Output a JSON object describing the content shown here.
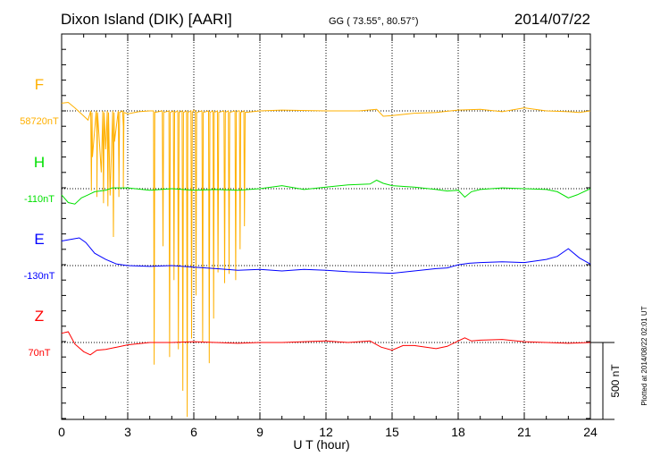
{
  "header": {
    "station": "Dixon Island (DIK)  [AARI]",
    "coords": "GG ( 73.55°,  80.57°)",
    "date": "2014/07/22"
  },
  "footer": {
    "plotted": "Plotted at 2014/08/22 02:01  UT"
  },
  "chart_data": {
    "type": "line",
    "title": "Dixon Island (DIK)  [AARI]",
    "xlabel": "U T (hour)",
    "xlim": [
      0,
      24
    ],
    "xticks": [
      "0",
      "3",
      "6",
      "9",
      "12",
      "15",
      "18",
      "21",
      "24"
    ],
    "scale_label": "500 nT",
    "scale_nT": 500,
    "series": [
      {
        "name": "F",
        "baseline": "58720nT",
        "color": "#ffb000",
        "points": [
          [
            0,
            50
          ],
          [
            0.3,
            55
          ],
          [
            0.6,
            20
          ],
          [
            0.9,
            -20
          ],
          [
            1.2,
            -60
          ],
          [
            1.4,
            -300
          ],
          [
            1.6,
            -150
          ],
          [
            1.8,
            -400
          ],
          [
            2,
            -250
          ],
          [
            2.2,
            -550
          ],
          [
            2.4,
            -200
          ],
          [
            2.6,
            -420
          ],
          [
            2.8,
            -100
          ],
          [
            3,
            -20
          ],
          [
            3.5,
            -5
          ],
          [
            4,
            0
          ],
          [
            6,
            5
          ],
          [
            8,
            0
          ],
          [
            9,
            0
          ],
          [
            10,
            5
          ],
          [
            12,
            0
          ],
          [
            13.5,
            0
          ],
          [
            14.3,
            10
          ],
          [
            14.6,
            -35
          ],
          [
            15,
            -30
          ],
          [
            16,
            -15
          ],
          [
            17,
            -10
          ],
          [
            18,
            5
          ],
          [
            19,
            10
          ],
          [
            20,
            -5
          ],
          [
            21,
            20
          ],
          [
            22,
            0
          ],
          [
            23,
            -5
          ],
          [
            23.5,
            -10
          ],
          [
            24,
            0
          ]
        ],
        "spikes": [
          [
            1.35,
            -520
          ],
          [
            1.6,
            -560
          ],
          [
            1.9,
            -600
          ],
          [
            2.1,
            -620
          ],
          [
            2.35,
            -820
          ],
          [
            2.6,
            -560
          ],
          [
            2.8,
            -500
          ],
          [
            4.2,
            -1650
          ],
          [
            4.6,
            -880
          ],
          [
            4.9,
            -1600
          ],
          [
            5.1,
            -1100
          ],
          [
            5.3,
            -1550
          ],
          [
            5.5,
            -1820
          ],
          [
            5.7,
            -1990
          ],
          [
            5.9,
            -1480
          ],
          [
            6.1,
            -1200
          ],
          [
            6.4,
            -1500
          ],
          [
            6.7,
            -1640
          ],
          [
            6.9,
            -1350
          ],
          [
            7.1,
            -1050
          ],
          [
            7.4,
            -1120
          ],
          [
            7.6,
            -1060
          ],
          [
            7.9,
            -1100
          ],
          [
            8.1,
            -900
          ],
          [
            8.3,
            -750
          ]
        ]
      },
      {
        "name": "H",
        "baseline": "-110nT",
        "color": "#00e000",
        "points": [
          [
            0,
            -40
          ],
          [
            0.3,
            -90
          ],
          [
            0.6,
            -100
          ],
          [
            0.9,
            -60
          ],
          [
            1.2,
            -40
          ],
          [
            1.5,
            -20
          ],
          [
            2,
            -10
          ],
          [
            2.3,
            5
          ],
          [
            3,
            5
          ],
          [
            4,
            -10
          ],
          [
            5,
            0
          ],
          [
            6,
            -10
          ],
          [
            7,
            -5
          ],
          [
            8,
            -10
          ],
          [
            9,
            0
          ],
          [
            10,
            20
          ],
          [
            11,
            -5
          ],
          [
            12,
            10
          ],
          [
            13,
            25
          ],
          [
            14,
            30
          ],
          [
            14.3,
            55
          ],
          [
            14.6,
            35
          ],
          [
            15,
            20
          ],
          [
            16,
            10
          ],
          [
            17,
            -5
          ],
          [
            17.5,
            -15
          ],
          [
            18,
            -10
          ],
          [
            18.3,
            -55
          ],
          [
            18.6,
            -20
          ],
          [
            19,
            -5
          ],
          [
            20,
            5
          ],
          [
            21,
            0
          ],
          [
            22,
            -5
          ],
          [
            22.5,
            -20
          ],
          [
            23,
            -60
          ],
          [
            23.4,
            -40
          ],
          [
            24,
            0
          ]
        ]
      },
      {
        "name": "E",
        "baseline": "-130nT",
        "color": "#0000ff",
        "points": [
          [
            0,
            160
          ],
          [
            0.4,
            170
          ],
          [
            0.8,
            180
          ],
          [
            1.1,
            150
          ],
          [
            1.5,
            80
          ],
          [
            2,
            40
          ],
          [
            2.5,
            10
          ],
          [
            3,
            0
          ],
          [
            4,
            -5
          ],
          [
            5,
            0
          ],
          [
            6,
            -10
          ],
          [
            7,
            -20
          ],
          [
            8,
            -30
          ],
          [
            9,
            -25
          ],
          [
            10,
            -35
          ],
          [
            11,
            -25
          ],
          [
            12,
            -30
          ],
          [
            13,
            -40
          ],
          [
            14,
            -45
          ],
          [
            15,
            -50
          ],
          [
            16,
            -35
          ],
          [
            17,
            -20
          ],
          [
            17.5,
            -15
          ],
          [
            18,
            5
          ],
          [
            18.5,
            15
          ],
          [
            19,
            20
          ],
          [
            20,
            25
          ],
          [
            21,
            20
          ],
          [
            22,
            40
          ],
          [
            22.5,
            60
          ],
          [
            23,
            110
          ],
          [
            23.5,
            50
          ],
          [
            24,
            10
          ]
        ]
      },
      {
        "name": "Z",
        "baseline": "70nT",
        "color": "#ff0000",
        "points": [
          [
            0,
            60
          ],
          [
            0.3,
            70
          ],
          [
            0.6,
            -10
          ],
          [
            1,
            -60
          ],
          [
            1.3,
            -80
          ],
          [
            1.6,
            -50
          ],
          [
            2,
            -45
          ],
          [
            2.5,
            -30
          ],
          [
            3,
            -15
          ],
          [
            4,
            0
          ],
          [
            5,
            0
          ],
          [
            6,
            5
          ],
          [
            7,
            0
          ],
          [
            8,
            -5
          ],
          [
            9,
            0
          ],
          [
            10,
            0
          ],
          [
            11,
            5
          ],
          [
            12,
            10
          ],
          [
            13,
            0
          ],
          [
            14,
            10
          ],
          [
            14.5,
            -30
          ],
          [
            15,
            -50
          ],
          [
            15.5,
            -20
          ],
          [
            16,
            -20
          ],
          [
            17,
            -40
          ],
          [
            17.5,
            -25
          ],
          [
            18,
            10
          ],
          [
            18.3,
            30
          ],
          [
            18.6,
            10
          ],
          [
            19,
            15
          ],
          [
            20,
            20
          ],
          [
            21,
            5
          ],
          [
            22,
            0
          ],
          [
            23,
            -5
          ],
          [
            24,
            0
          ]
        ]
      }
    ]
  }
}
